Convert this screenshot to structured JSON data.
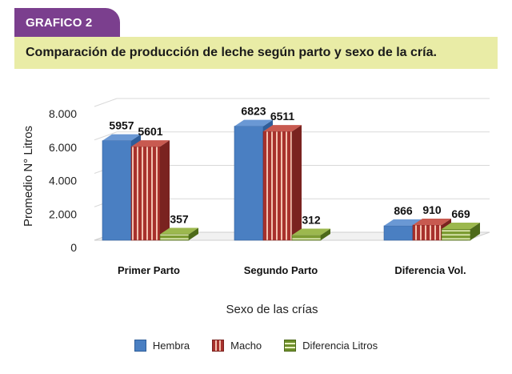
{
  "header": {
    "tag": "GRAFICO 2",
    "title": "Comparación de producción de leche según parto y sexo de la cría."
  },
  "colors": {
    "hembra": "#4a7fc2",
    "macho": "#a8312c",
    "diferencia": "#7d9c33",
    "tag_bg": "#7b3f8e",
    "title_bg": "#e9eca6"
  },
  "legend": [
    {
      "label": "Hembra",
      "icon": "solid-blue-swatch"
    },
    {
      "label": "Macho",
      "icon": "striped-red-swatch"
    },
    {
      "label": "Diferencia Litros",
      "icon": "striped-green-swatch"
    }
  ],
  "chart_data": {
    "type": "bar",
    "title": "",
    "xlabel": "Sexo de las crías",
    "ylabel": "Promedio N° Litros",
    "categories": [
      "Primer Parto",
      "Segundo Parto",
      "Diferencia Vol."
    ],
    "series": [
      {
        "name": "Hembra",
        "values": [
          5957,
          6823,
          866
        ]
      },
      {
        "name": "Macho",
        "values": [
          5601,
          6511,
          910
        ]
      },
      {
        "name": "Diferencia Litros",
        "values": [
          357,
          312,
          669
        ]
      }
    ],
    "ylim": [
      0,
      8000
    ],
    "yticks": [
      "0",
      "2.000",
      "4.000",
      "6.000",
      "8.000"
    ],
    "ytick_values": [
      0,
      2000,
      4000,
      6000,
      8000
    ],
    "data_labels": [
      [
        "5957",
        "5601",
        "357"
      ],
      [
        "6823",
        "6511",
        "312"
      ],
      [
        "866",
        "910",
        "669"
      ]
    ],
    "grid": true,
    "legend_position": "bottom",
    "style": "3d"
  }
}
